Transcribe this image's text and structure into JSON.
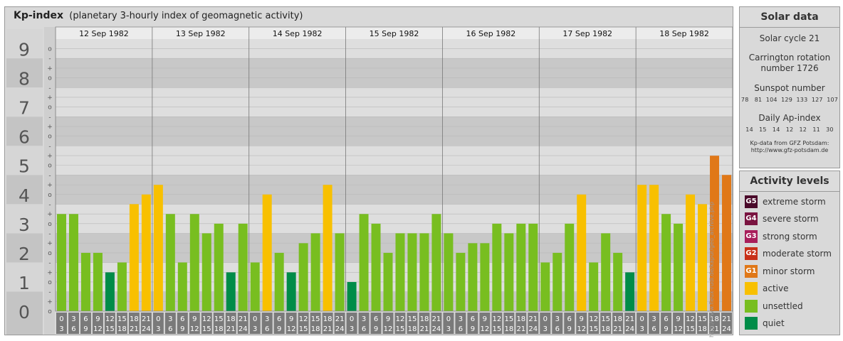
{
  "header": {
    "title_bold": "Kp-index",
    "title_rest": "(planetary 3-hourly index of geomagnetic activity)"
  },
  "solar": {
    "title": "Solar data",
    "cycle": "Solar cycle 21",
    "carrington_line1": "Carrington rotation",
    "carrington_line2": "number 1726",
    "sunspot_label": "Sunspot number",
    "sunspot_values": "78   81  104  129  133  127  107",
    "ap_label": "Daily Ap-index",
    "ap_values": "14   15   14   12   12   11   30",
    "source_line1": "Kp-data from GFZ Potsdam:",
    "source_line2": "http://www.gfz-potsdam.de"
  },
  "levels": {
    "title": "Activity levels",
    "items": [
      {
        "badge": "G5",
        "label": "extreme storm",
        "color": "#4a0a2a"
      },
      {
        "badge": "G4",
        "label": "severe storm",
        "color": "#7a1440"
      },
      {
        "badge": "G3",
        "label": "strong storm",
        "color": "#a81e5a"
      },
      {
        "badge": "G2",
        "label": "moderate storm",
        "color": "#c83018"
      },
      {
        "badge": "G1",
        "label": "minor storm",
        "color": "#e07818"
      },
      {
        "badge": "",
        "label": "active",
        "color": "#f8c000"
      },
      {
        "badge": "",
        "label": "unsettled",
        "color": "#78be20"
      },
      {
        "badge": "",
        "label": "quiet",
        "color": "#008c48"
      }
    ]
  },
  "watermark": "http://www.fleux-rudi.de/kapur/geo_archive.php",
  "chart_data": {
    "type": "bar",
    "y_ticks": [
      "0",
      "1",
      "2",
      "3",
      "4",
      "5",
      "6",
      "7",
      "8",
      "9"
    ],
    "minor_labels": [
      "+",
      "o",
      "-"
    ],
    "ylim": [
      0,
      9.33
    ],
    "days": [
      "12 Sep 1982",
      "13 Sep 1982",
      "14 Sep 1982",
      "15 Sep 1982",
      "16 Sep 1982",
      "17 Sep 1982",
      "18 Sep 1982"
    ],
    "interval_starts": [
      "0",
      "3",
      "6",
      "9",
      "12",
      "15",
      "18",
      "21"
    ],
    "interval_ends": [
      "3",
      "6",
      "9",
      "12",
      "15",
      "18",
      "21",
      "24"
    ],
    "colors": {
      "quiet": "#008c48",
      "unsettled": "#78be20",
      "active": "#f8c000",
      "minor": "#e07818",
      "moderate": "#c83018"
    },
    "values": [
      [
        3.33,
        3.33,
        2.0,
        2.0,
        1.33,
        1.67,
        3.67,
        4.0
      ],
      [
        4.33,
        3.33,
        1.67,
        3.33,
        2.67,
        3.0,
        1.33,
        3.0
      ],
      [
        1.67,
        4.0,
        2.0,
        1.33,
        2.33,
        2.67,
        4.33,
        2.67
      ],
      [
        1.0,
        3.33,
        3.0,
        2.0,
        2.67,
        2.67,
        2.67,
        3.33
      ],
      [
        2.67,
        2.0,
        2.33,
        2.33,
        3.0,
        2.67,
        3.0,
        3.0
      ],
      [
        1.67,
        2.0,
        3.0,
        4.0,
        1.67,
        2.67,
        2.0,
        1.33
      ],
      [
        4.33,
        4.33,
        3.33,
        3.0,
        4.0,
        3.67,
        5.33,
        4.67
      ]
    ]
  }
}
